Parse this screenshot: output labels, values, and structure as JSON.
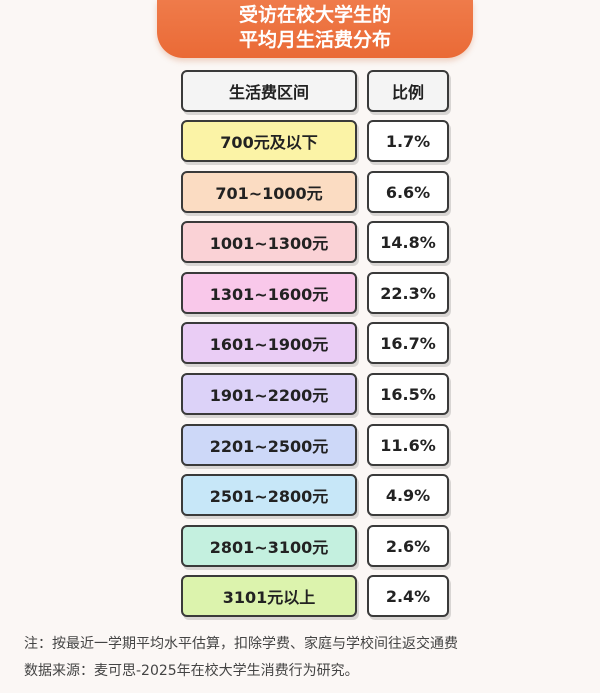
{
  "title": {
    "line1": "受访在校大学生的",
    "line2": "平均月生活费分布"
  },
  "chart_data": {
    "type": "table",
    "headers": [
      "生活费区间",
      "比例"
    ],
    "rows": [
      {
        "range": "700元及以下",
        "value": "1.7%",
        "percent": 1.7,
        "color": "#fbf3a6"
      },
      {
        "range": "701~1000元",
        "value": "6.6%",
        "percent": 6.6,
        "color": "#fbdcc2"
      },
      {
        "range": "1001~1300元",
        "value": "14.8%",
        "percent": 14.8,
        "color": "#fad2d6"
      },
      {
        "range": "1301~1600元",
        "value": "22.3%",
        "percent": 22.3,
        "color": "#f9c8ea"
      },
      {
        "range": "1601~1900元",
        "value": "16.7%",
        "percent": 16.7,
        "color": "#eacdf5"
      },
      {
        "range": "1901~2200元",
        "value": "16.5%",
        "percent": 16.5,
        "color": "#dcd2f8"
      },
      {
        "range": "2201~2500元",
        "value": "11.6%",
        "percent": 11.6,
        "color": "#cdd8f8"
      },
      {
        "range": "2501~2800元",
        "value": "4.9%",
        "percent": 4.9,
        "color": "#c7e7f8"
      },
      {
        "range": "2801~3100元",
        "value": "2.6%",
        "percent": 2.6,
        "color": "#c4f0df"
      },
      {
        "range": "3101元以上",
        "value": "2.4%",
        "percent": 2.4,
        "color": "#dcf3ad"
      }
    ]
  },
  "notes": {
    "note": "注：按最近一学期平均水平估算，扣除学费、家庭与学校间往返交通费",
    "source": "数据来源：麦可思-2025年在校大学生消费行为研究。"
  },
  "colors": {
    "banner": "#ea6a36",
    "border": "#3a3a3a",
    "background": "#fbf7f5"
  }
}
